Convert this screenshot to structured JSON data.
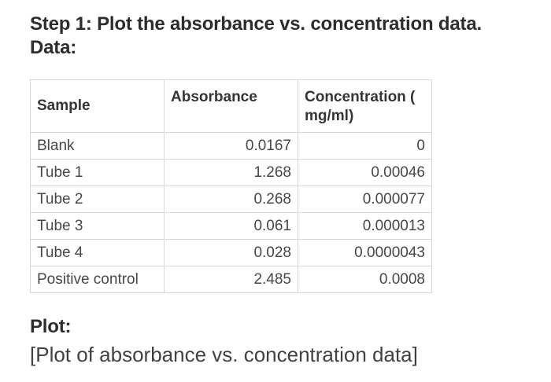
{
  "content": {
    "step_title": "Step 1: Plot the absorbance vs. concentration data.",
    "data_label": "Data:",
    "plot_label": "Plot:",
    "plot_placeholder": "[Plot of absorbance vs. concentration data]"
  },
  "table": {
    "columns": [
      "Sample",
      "Absorbance",
      "Concentration ( mg/ml)"
    ],
    "rows": [
      {
        "sample": "Blank",
        "absorbance": "0.0167",
        "concentration": "0"
      },
      {
        "sample": "Tube 1",
        "absorbance": "1.268",
        "concentration": "0.00046"
      },
      {
        "sample": "Tube 2",
        "absorbance": "0.268",
        "concentration": "0.000077"
      },
      {
        "sample": "Tube 3",
        "absorbance": "0.061",
        "concentration": "0.000013"
      },
      {
        "sample": "Tube 4",
        "absorbance": "0.028",
        "concentration": "0.0000043"
      },
      {
        "sample": "Positive control",
        "absorbance": "2.485",
        "concentration": "0.0008"
      }
    ]
  },
  "colors": {
    "background": "#ffffff",
    "heading_text": "#2b2d30",
    "table_header_text": "#333538",
    "table_body_text": "#45474a",
    "table_border": "#d9d9d9"
  }
}
